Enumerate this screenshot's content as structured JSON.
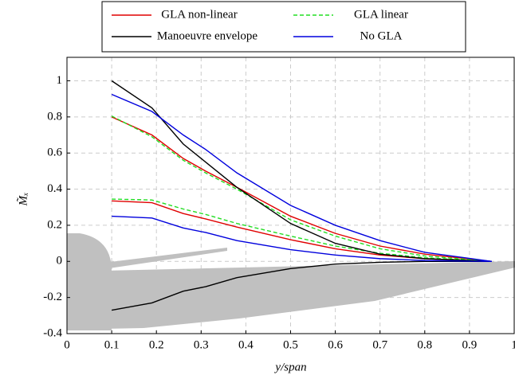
{
  "chart_data": {
    "type": "line",
    "x_label": "y/span",
    "y_label": "M̃ₓ",
    "x": [
      0.1,
      0.19,
      0.26,
      0.31,
      0.38,
      0.5,
      0.6,
      0.7,
      0.8,
      0.95
    ],
    "series": [
      {
        "name": "GLA non-linear",
        "color": "#e00000",
        "dash": false,
        "values": [
          [
            0.8,
            0.7,
            0.57,
            0.5,
            0.41,
            0.25,
            0.155,
            0.085,
            0.04,
            0
          ],
          [
            0.335,
            0.325,
            0.265,
            0.235,
            0.19,
            0.12,
            0.07,
            0.035,
            0.015,
            0
          ]
        ]
      },
      {
        "name": "GLA linear",
        "color": "#22dd22",
        "dash": true,
        "values": [
          [
            0.805,
            0.69,
            0.56,
            0.49,
            0.4,
            0.23,
            0.14,
            0.07,
            0.03,
            0
          ],
          [
            0.345,
            0.34,
            0.29,
            0.26,
            0.21,
            0.14,
            0.085,
            0.045,
            0.02,
            0
          ]
        ]
      },
      {
        "name": "Manoeuvre envelope",
        "color": "#000000",
        "dash": false,
        "values": [
          [
            1.0,
            0.85,
            0.65,
            0.55,
            0.41,
            0.21,
            0.1,
            0.04,
            0.015,
            0
          ],
          [
            -0.27,
            -0.23,
            -0.165,
            -0.14,
            -0.09,
            -0.04,
            -0.015,
            -0.005,
            0,
            0
          ]
        ]
      },
      {
        "name": "No GLA",
        "color": "#0000dd",
        "dash": false,
        "values": [
          [
            0.925,
            0.83,
            0.7,
            0.62,
            0.49,
            0.31,
            0.2,
            0.115,
            0.05,
            0
          ],
          [
            0.25,
            0.24,
            0.185,
            0.16,
            0.115,
            0.065,
            0.035,
            0.015,
            0.005,
            0
          ]
        ]
      }
    ],
    "xlim": [
      0,
      1
    ],
    "xticks": [
      0,
      0.1,
      0.2,
      0.3,
      0.4,
      0.5,
      0.6,
      0.7,
      0.8,
      0.9,
      1
    ],
    "ylim": [
      -0.4,
      1.13
    ],
    "yticks": [
      -0.4,
      -0.2,
      0,
      0.2,
      0.4,
      0.6,
      0.8,
      1
    ],
    "grid": true
  }
}
